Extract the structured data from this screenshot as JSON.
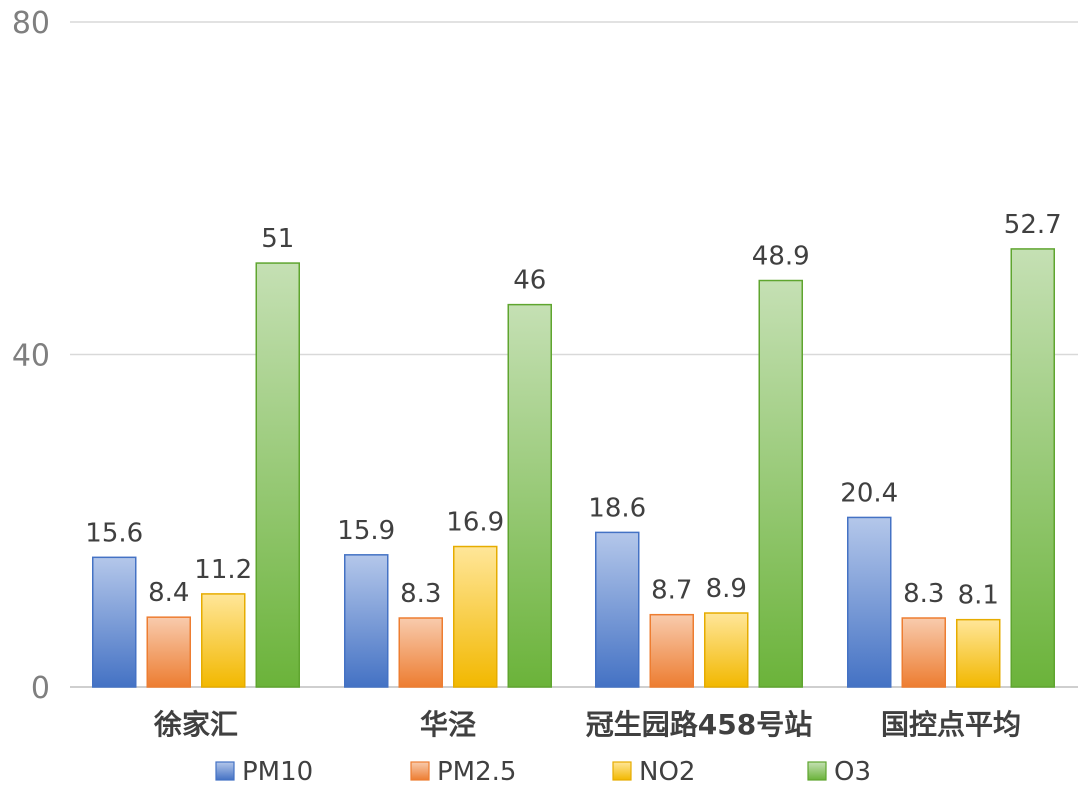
{
  "chart_data": {
    "type": "bar",
    "categories": [
      "徐家汇",
      "华泾",
      "冠生园路458号站",
      "国控点平均"
    ],
    "series": [
      {
        "name": "PM10",
        "values": [
          15.6,
          15.9,
          18.6,
          20.4
        ],
        "color_top": "#b4c7ea",
        "color_bottom": "#4472c4",
        "stroke": "#4472c4"
      },
      {
        "name": "PM2.5",
        "values": [
          8.4,
          8.3,
          8.7,
          8.3
        ],
        "color_top": "#f8cbad",
        "color_bottom": "#ed7d31",
        "stroke": "#ed7d31"
      },
      {
        "name": "NO2",
        "values": [
          11.2,
          16.9,
          8.9,
          8.1
        ],
        "color_top": "#ffe699",
        "color_bottom": "#f2b800",
        "stroke": "#e6ac00"
      },
      {
        "name": "O3",
        "values": [
          51,
          46,
          48.9,
          52.7
        ],
        "color_top": "#c5e0b4",
        "color_bottom": "#6bb33a",
        "stroke": "#5fa52f"
      }
    ],
    "data_labels": [
      [
        "15.6",
        "15.9",
        "18.6",
        "20.4"
      ],
      [
        "8.4",
        "8.3",
        "8.7",
        "8.3"
      ],
      [
        "11.2",
        "16.9",
        "8.9",
        "8.1"
      ],
      [
        "51",
        "46",
        "48.9",
        "52.7"
      ]
    ],
    "y_ticks": [
      "0",
      "40",
      "80"
    ],
    "y_tick_values": [
      0,
      40,
      80
    ],
    "ylim": [
      0,
      80
    ],
    "title": "",
    "xlabel": "",
    "ylabel": "",
    "grid": true,
    "legend_position": "bottom"
  }
}
